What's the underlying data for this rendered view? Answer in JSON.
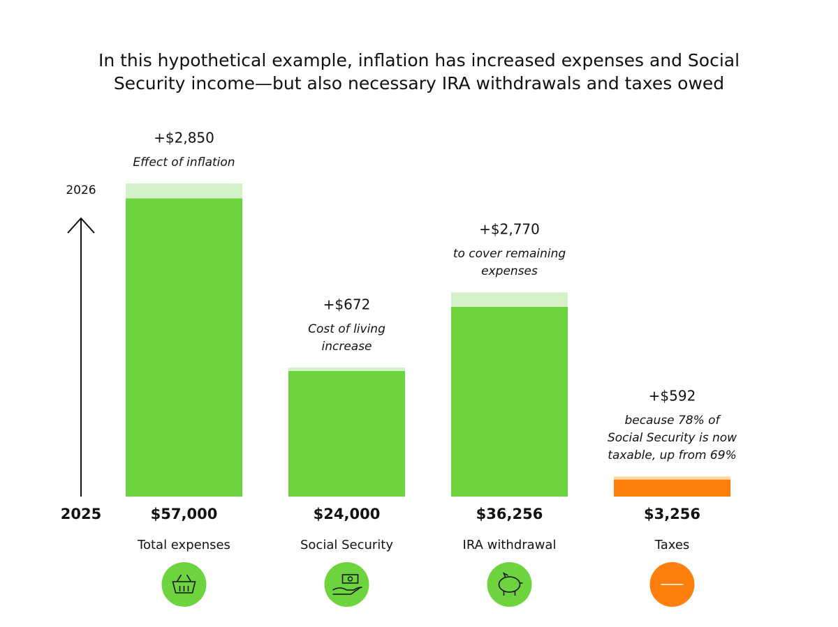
{
  "chart_data": {
    "type": "bar",
    "title": [
      "In this hypothetical example, inflation has increased expenses and Social",
      "Security income—but also necessary IRA withdrawals and taxes owed"
    ],
    "axis_labels": {
      "start": "2025",
      "end": "2026"
    },
    "categories": [
      "Total expenses",
      "Social Security",
      "IRA withdrawal",
      "Taxes"
    ],
    "series": [
      {
        "values": [
          57000,
          24000,
          36256,
          3256
        ],
        "value_labels": [
          "$57,000",
          "$24,000",
          "$36,256",
          "$3,256"
        ],
        "colors": [
          "#6dd43f",
          "#6dd43f",
          "#6dd43f",
          "#ff7f0e"
        ]
      },
      {
        "values": [
          2850,
          672,
          2770,
          592
        ],
        "value_labels": [
          "+$2,850",
          "+$672",
          "+$2,770",
          "+$592"
        ],
        "colors": [
          "#d4f0c8",
          "#d4f0c8",
          "#d4f0c8",
          "#ffd9a8"
        ]
      }
    ],
    "stacked": true,
    "annotations": [
      [
        "Effect of inflation"
      ],
      [
        "Cost of living",
        "increase"
      ],
      [
        "to cover remaining",
        "expenses"
      ],
      [
        "because 78% of",
        "Social Security is now",
        "taxable, up from 69%"
      ]
    ]
  }
}
